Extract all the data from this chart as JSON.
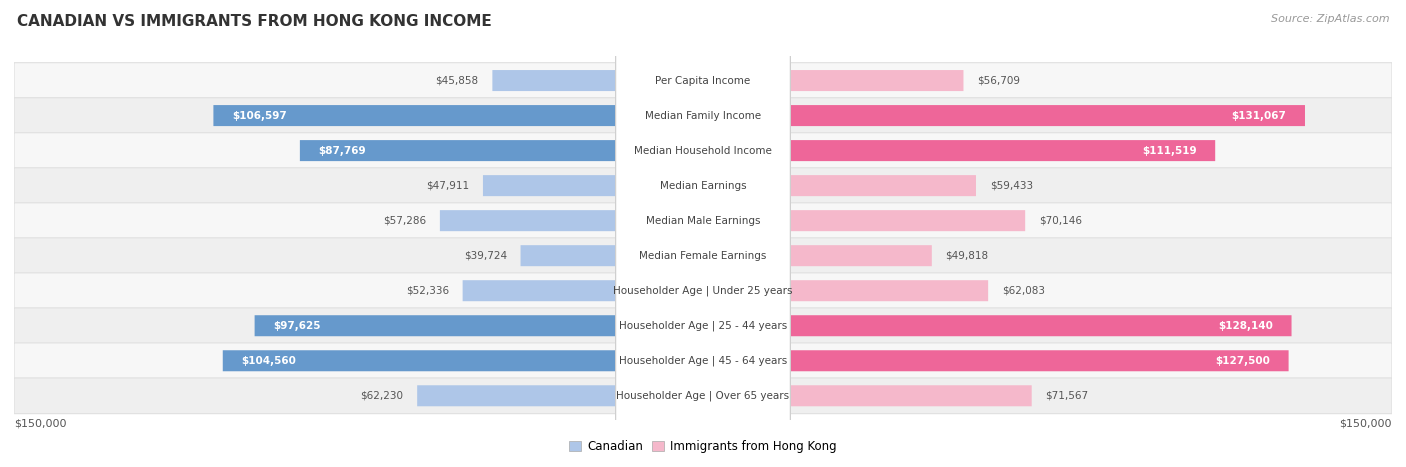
{
  "title": "CANADIAN VS IMMIGRANTS FROM HONG KONG INCOME",
  "source": "Source: ZipAtlas.com",
  "categories": [
    "Per Capita Income",
    "Median Family Income",
    "Median Household Income",
    "Median Earnings",
    "Median Male Earnings",
    "Median Female Earnings",
    "Householder Age | Under 25 years",
    "Householder Age | 25 - 44 years",
    "Householder Age | 45 - 64 years",
    "Householder Age | Over 65 years"
  ],
  "canadian_values": [
    45858,
    106597,
    87769,
    47911,
    57286,
    39724,
    52336,
    97625,
    104560,
    62230
  ],
  "immigrant_values": [
    56709,
    131067,
    111519,
    59433,
    70146,
    49818,
    62083,
    128140,
    127500,
    71567
  ],
  "canadian_color_light": "#aec6e8",
  "canadian_color_dark": "#6699cc",
  "immigrant_color_light": "#f5b8cb",
  "immigrant_color_dark": "#ee6699",
  "row_bg_light": "#f7f7f7",
  "row_bg_dark": "#efefef",
  "row_border": "#e0e0e0",
  "max_value": 150000,
  "x_label_left": "$150,000",
  "x_label_right": "$150,000",
  "legend_canadian": "Canadian",
  "legend_immigrant": "Immigrants from Hong Kong",
  "background_color": "#ffffff",
  "title_fontsize": 11,
  "source_fontsize": 8,
  "label_fontsize": 7.5,
  "value_fontsize": 7.5,
  "axis_fontsize": 8
}
